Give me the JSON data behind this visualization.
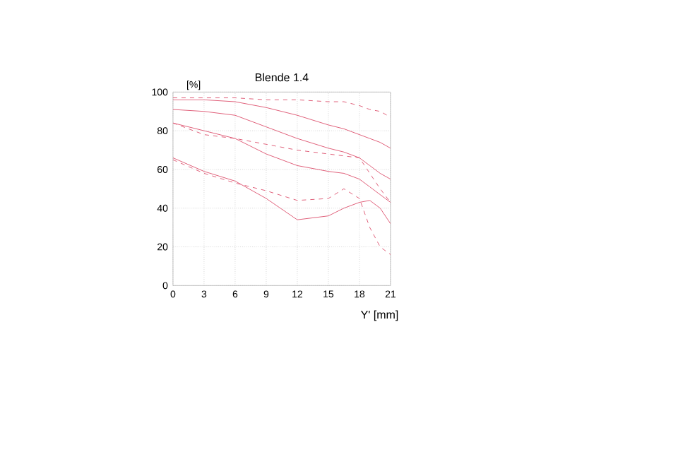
{
  "chart_data": {
    "type": "line",
    "title": "Blende 1.4",
    "xlabel": "Y' [mm]",
    "ylabel": "[%]",
    "x": [
      0,
      3,
      6,
      9,
      12,
      15,
      16.5,
      18,
      19,
      20,
      21
    ],
    "series": [
      {
        "color": "#e0607a",
        "line_style": "solid",
        "values": [
          96,
          96,
          95,
          92,
          88,
          83,
          81,
          78,
          76,
          74,
          71
        ]
      },
      {
        "color": "#e0607a",
        "line_style": "dashed",
        "values": [
          97,
          97,
          97,
          96,
          96,
          95,
          95,
          93,
          91,
          90,
          87
        ]
      },
      {
        "color": "#e0607a",
        "line_style": "solid",
        "values": [
          91,
          90,
          88,
          82,
          76,
          71,
          69,
          66,
          62,
          58,
          55
        ]
      },
      {
        "color": "#e0607a",
        "line_style": "solid",
        "values": [
          84,
          80,
          76,
          68,
          62,
          59,
          58,
          55,
          51,
          47,
          43
        ]
      },
      {
        "color": "#e0607a",
        "line_style": "dashed",
        "values": [
          84,
          78,
          76,
          73,
          70,
          68,
          67,
          66,
          58,
          50,
          43
        ]
      },
      {
        "color": "#e0607a",
        "line_style": "solid",
        "values": [
          66,
          59,
          54,
          45,
          34,
          36,
          40,
          43,
          44,
          40,
          32
        ]
      },
      {
        "color": "#e0607a",
        "line_style": "dashed",
        "values": [
          65,
          58,
          53,
          49,
          44,
          45,
          50,
          45,
          30,
          20,
          16
        ]
      }
    ],
    "xlim": [
      0,
      21
    ],
    "xticks": [
      0,
      3,
      6,
      9,
      12,
      15,
      18,
      21
    ],
    "ylim": [
      0,
      100
    ],
    "yticks": [
      0,
      20,
      40,
      60,
      80,
      100
    ],
    "grid": true,
    "marker": "none"
  }
}
